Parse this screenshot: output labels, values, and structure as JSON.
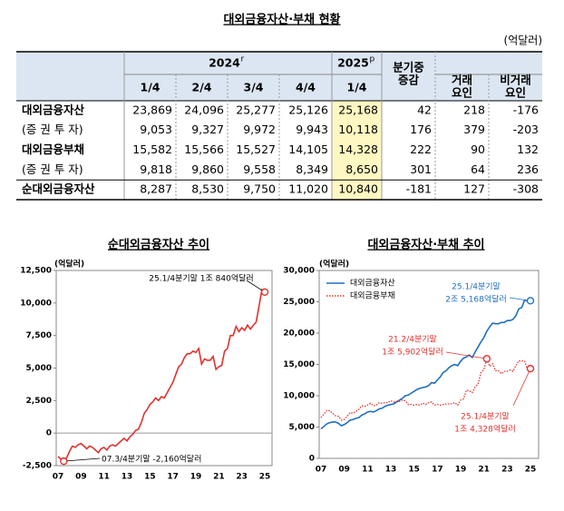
{
  "header": {
    "title": "대외금융자산·부채 현황",
    "unit": "(억달러)"
  },
  "table": {
    "header": {
      "year_2024": "2024",
      "year_2024_mark": "r",
      "year_2025": "2025",
      "year_2025_mark": "p",
      "quarters": [
        "1/4",
        "2/4",
        "3/4",
        "4/4",
        "1/4"
      ],
      "change": [
        "분기중",
        "증감"
      ],
      "transaction": [
        "거래",
        "요인"
      ],
      "non_transaction": [
        "비거래",
        "요인"
      ]
    },
    "rows": [
      [
        "대외금융자산",
        "23,869",
        "24,096",
        "25,277",
        "25,126",
        "25,168",
        "42",
        "218",
        "-176"
      ],
      [
        "(증 권 투 자)",
        "9,053",
        "9,327",
        "9,972",
        "9,943",
        "10,118",
        "176",
        "379",
        "-203"
      ],
      [
        "대외금융부채",
        "15,582",
        "15,566",
        "15,527",
        "14,105",
        "14,328",
        "222",
        "90",
        "132"
      ],
      [
        "(증 권 투 자)",
        "9,818",
        "9,860",
        "9,558",
        "8,349",
        "8,650",
        "301",
        "64",
        "236"
      ],
      [
        "순대외금융자산",
        "8,287",
        "8,530",
        "9,750",
        "11,020",
        "10,840",
        "-181",
        "127",
        "-308"
      ]
    ]
  },
  "chart_data": [
    {
      "type": "line",
      "title": "순대외금융자산 추이",
      "y_label": "(억달러)",
      "color": "#e3312d",
      "categories": [
        "07",
        null,
        null,
        null,
        null,
        null,
        null,
        null,
        "09",
        null,
        null,
        null,
        null,
        null,
        null,
        null,
        "11",
        null,
        null,
        null,
        null,
        null,
        null,
        null,
        "13",
        null,
        null,
        null,
        null,
        null,
        null,
        null,
        "15",
        null,
        null,
        null,
        null,
        null,
        null,
        null,
        "17",
        null,
        null,
        null,
        null,
        null,
        null,
        null,
        "19",
        null,
        null,
        null,
        null,
        null,
        null,
        null,
        "21",
        null,
        null,
        null,
        null,
        null,
        null,
        null,
        "23",
        null,
        null,
        null,
        null,
        null,
        null,
        null,
        "25"
      ],
      "values": [
        -1800,
        -2000,
        -2160,
        -1900,
        -1400,
        -1000,
        -1100,
        -900,
        -800,
        -1000,
        -1200,
        -1000,
        -1100,
        -1300,
        -1500,
        -1200,
        -1100,
        -1300,
        -1000,
        -900,
        -1000,
        -800,
        -600,
        -400,
        -600,
        -300,
        -100,
        200,
        300,
        800,
        1500,
        1800,
        2200,
        2400,
        2700,
        2500,
        2800,
        2700,
        3100,
        3500,
        3900,
        4500,
        5100,
        5300,
        5800,
        6100,
        6100,
        6300,
        6200,
        6500,
        5300,
        5700,
        5600,
        5600,
        5900,
        4900,
        5100,
        5200,
        6300,
        6500,
        7500,
        7500,
        8200,
        7800,
        8100,
        7900,
        8300,
        8000,
        8287,
        8530,
        9750,
        11020,
        10840
      ],
      "ylim": [
        -2500,
        12500
      ],
      "yticks": [
        {
          "value": -2500,
          "label": "-2,500"
        },
        0,
        {
          "value": 2500,
          "label": "2,500"
        },
        {
          "value": 5000,
          "label": "5,000"
        },
        {
          "value": 7500,
          "label": "7,500"
        },
        {
          "value": 10000,
          "label": "10,000"
        },
        {
          "value": 12500,
          "label": "12,500"
        }
      ],
      "annotations": [
        {
          "text": [
            "25.1/4분기말 1조 840억달러"
          ],
          "point": 72
        },
        {
          "text": [
            "07.3/4분기말 -2,160억달러"
          ],
          "point": 2
        }
      ]
    },
    {
      "type": "line",
      "title": "대외금융자산·부채 추이",
      "y_label": "(억달러)",
      "legend": "upper left",
      "categories": [
        "07",
        null,
        null,
        null,
        null,
        null,
        null,
        null,
        "09",
        null,
        null,
        null,
        null,
        null,
        null,
        null,
        "11",
        null,
        null,
        null,
        null,
        null,
        null,
        null,
        "13",
        null,
        null,
        null,
        null,
        null,
        null,
        null,
        "15",
        null,
        null,
        null,
        null,
        null,
        null,
        null,
        "17",
        null,
        null,
        null,
        null,
        null,
        null,
        null,
        "19",
        null,
        null,
        null,
        null,
        null,
        null,
        null,
        "21",
        null,
        null,
        null,
        null,
        null,
        null,
        null,
        "23",
        null,
        null,
        null,
        null,
        null,
        null,
        null,
        "25"
      ],
      "series": [
        {
          "name": "대외금융자산",
          "color": "#1f6fc0",
          "style": "solid",
          "values": [
            4700,
            5100,
            5500,
            5700,
            5800,
            5800,
            5600,
            5200,
            5400,
            5700,
            6100,
            6200,
            6400,
            6500,
            6900,
            7100,
            7400,
            7500,
            7400,
            7600,
            7900,
            8000,
            8300,
            8500,
            8600,
            8700,
            9000,
            9300,
            9600,
            10000,
            10100,
            10400,
            10700,
            11000,
            11200,
            11300,
            11400,
            11600,
            12100,
            12000,
            12500,
            13000,
            13700,
            14000,
            14500,
            14800,
            15000,
            14800,
            15500,
            16000,
            16200,
            16500,
            16100,
            17000,
            17800,
            18600,
            19300,
            20300,
            21000,
            21600,
            21500,
            21500,
            21700,
            21700,
            22000,
            22000,
            22200,
            22800,
            23869,
            24096,
            25277,
            25126,
            25168
          ]
        },
        {
          "name": "대외금융부채",
          "color": "#e3312d",
          "style": "dotted",
          "values": [
            6500,
            7100,
            7660,
            7600,
            7200,
            6800,
            6700,
            6100,
            6200,
            6700,
            7300,
            7200,
            7500,
            7800,
            8400,
            8300,
            8500,
            8800,
            8400,
            8500,
            8900,
            8800,
            8900,
            8900,
            9200,
            9000,
            9100,
            9100,
            9300,
            9200,
            8600,
            8600,
            8500,
            8600,
            8500,
            8800,
            8600,
            8900,
            9000,
            8500,
            8600,
            8500,
            8600,
            8700,
            8700,
            8700,
            8900,
            8500,
            9300,
            9500,
            10900,
            10800,
            10500,
            11400,
            11900,
            13700,
            14200,
            15902,
            14700,
            15100,
            14000,
            14000,
            13500,
            13900,
            13900,
            14100,
            13900,
            14800,
            15582,
            15566,
            15527,
            14105,
            14328
          ]
        }
      ],
      "ylim": [
        0,
        30000
      ],
      "yticks": [
        0,
        {
          "value": 5000,
          "label": "5,000"
        },
        {
          "value": 10000,
          "label": "10,000"
        },
        {
          "value": 15000,
          "label": "15,000"
        },
        {
          "value": 20000,
          "label": "20,000"
        },
        {
          "value": 25000,
          "label": "25,000"
        },
        {
          "value": 30000,
          "label": "30,000"
        }
      ],
      "annotations": [
        {
          "text": [
            "25.1/4분기말",
            "2조 5,168억달러"
          ],
          "series": 0,
          "point": 72
        },
        {
          "text": [
            "21.2/4분기말",
            "1조 5,902억달러"
          ],
          "series": 1,
          "point": 57
        },
        {
          "text": [
            "25.1/4분기말",
            "1조 4,328억달러"
          ],
          "series": 1,
          "point": 72
        }
      ]
    }
  ]
}
